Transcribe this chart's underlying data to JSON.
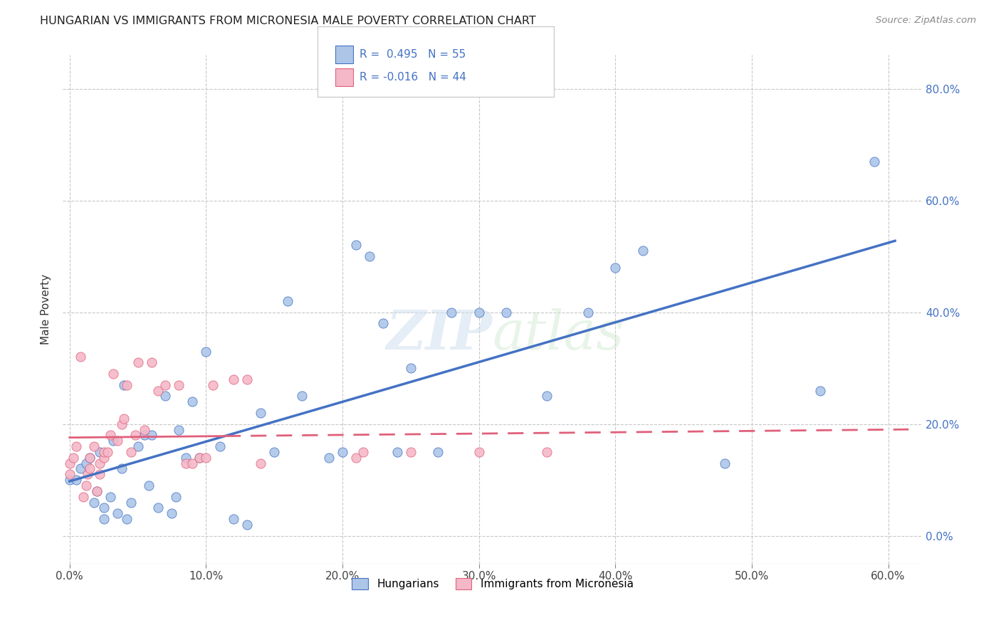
{
  "title": "HUNGARIAN VS IMMIGRANTS FROM MICRONESIA MALE POVERTY CORRELATION CHART",
  "source": "Source: ZipAtlas.com",
  "xlim": [
    -0.005,
    0.625
  ],
  "ylim": [
    -0.05,
    0.86
  ],
  "xtick_vals": [
    0.0,
    0.1,
    0.2,
    0.3,
    0.4,
    0.5,
    0.6
  ],
  "ytick_vals": [
    0.0,
    0.2,
    0.4,
    0.6,
    0.8
  ],
  "watermark": "ZIPatlas",
  "legend_R1": "0.495",
  "legend_N1": "55",
  "legend_R2": "-0.016",
  "legend_N2": "44",
  "blue_scatter": "#adc6e8",
  "pink_scatter": "#f4b8c8",
  "line_blue": "#4472c4",
  "line_pink": "#e0607a",
  "hungarian_scatter_x": [
    0.0,
    0.005,
    0.008,
    0.012,
    0.015,
    0.018,
    0.02,
    0.022,
    0.025,
    0.025,
    0.03,
    0.032,
    0.035,
    0.038,
    0.04,
    0.042,
    0.045,
    0.05,
    0.055,
    0.058,
    0.06,
    0.065,
    0.07,
    0.075,
    0.078,
    0.08,
    0.085,
    0.09,
    0.095,
    0.1,
    0.11,
    0.12,
    0.13,
    0.14,
    0.15,
    0.16,
    0.17,
    0.19,
    0.2,
    0.21,
    0.22,
    0.23,
    0.24,
    0.25,
    0.27,
    0.28,
    0.3,
    0.32,
    0.35,
    0.38,
    0.4,
    0.42,
    0.48,
    0.55,
    0.59
  ],
  "hungarian_scatter_y": [
    0.1,
    0.1,
    0.12,
    0.13,
    0.14,
    0.06,
    0.08,
    0.15,
    0.03,
    0.05,
    0.07,
    0.17,
    0.04,
    0.12,
    0.27,
    0.03,
    0.06,
    0.16,
    0.18,
    0.09,
    0.18,
    0.05,
    0.25,
    0.04,
    0.07,
    0.19,
    0.14,
    0.24,
    0.14,
    0.33,
    0.16,
    0.03,
    0.02,
    0.22,
    0.15,
    0.42,
    0.25,
    0.14,
    0.15,
    0.52,
    0.5,
    0.38,
    0.15,
    0.3,
    0.15,
    0.4,
    0.4,
    0.4,
    0.25,
    0.4,
    0.48,
    0.51,
    0.13,
    0.26,
    0.67
  ],
  "micronesia_scatter_x": [
    0.0,
    0.0,
    0.003,
    0.005,
    0.008,
    0.01,
    0.012,
    0.013,
    0.015,
    0.015,
    0.018,
    0.02,
    0.022,
    0.022,
    0.025,
    0.025,
    0.028,
    0.03,
    0.032,
    0.035,
    0.038,
    0.04,
    0.042,
    0.045,
    0.048,
    0.05,
    0.055,
    0.06,
    0.065,
    0.07,
    0.08,
    0.085,
    0.09,
    0.095,
    0.1,
    0.105,
    0.12,
    0.13,
    0.14,
    0.21,
    0.215,
    0.25,
    0.3,
    0.35
  ],
  "micronesia_scatter_y": [
    0.11,
    0.13,
    0.14,
    0.16,
    0.32,
    0.07,
    0.09,
    0.11,
    0.12,
    0.14,
    0.16,
    0.08,
    0.11,
    0.13,
    0.14,
    0.15,
    0.15,
    0.18,
    0.29,
    0.17,
    0.2,
    0.21,
    0.27,
    0.15,
    0.18,
    0.31,
    0.19,
    0.31,
    0.26,
    0.27,
    0.27,
    0.13,
    0.13,
    0.14,
    0.14,
    0.27,
    0.28,
    0.28,
    0.13,
    0.14,
    0.15,
    0.15,
    0.15,
    0.15
  ]
}
